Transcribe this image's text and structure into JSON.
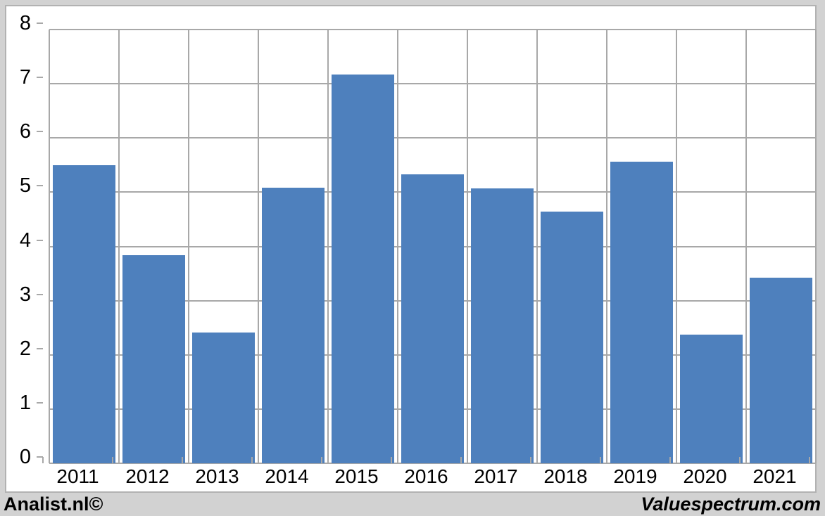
{
  "chart_data": {
    "type": "bar",
    "categories": [
      "2011",
      "2012",
      "2013",
      "2014",
      "2015",
      "2016",
      "2017",
      "2018",
      "2019",
      "2020",
      "2021"
    ],
    "values": [
      5.5,
      3.84,
      2.41,
      5.08,
      7.17,
      5.33,
      5.07,
      4.64,
      5.56,
      2.37,
      3.42
    ],
    "title": "",
    "xlabel": "",
    "ylabel": "",
    "ylim": [
      0,
      8
    ],
    "yticks": [
      0,
      1,
      2,
      3,
      4,
      5,
      6,
      7,
      8
    ],
    "grid": true,
    "legend": false,
    "bar_color": "#4e80bd",
    "grid_color": "#a8a8a8",
    "plot_background": "#ffffff",
    "page_background": "#d2d2d2",
    "panel_border_color": "#b2b2b2"
  },
  "footer": {
    "left": "Analist.nl©",
    "right": "Valuespectrum.com"
  }
}
